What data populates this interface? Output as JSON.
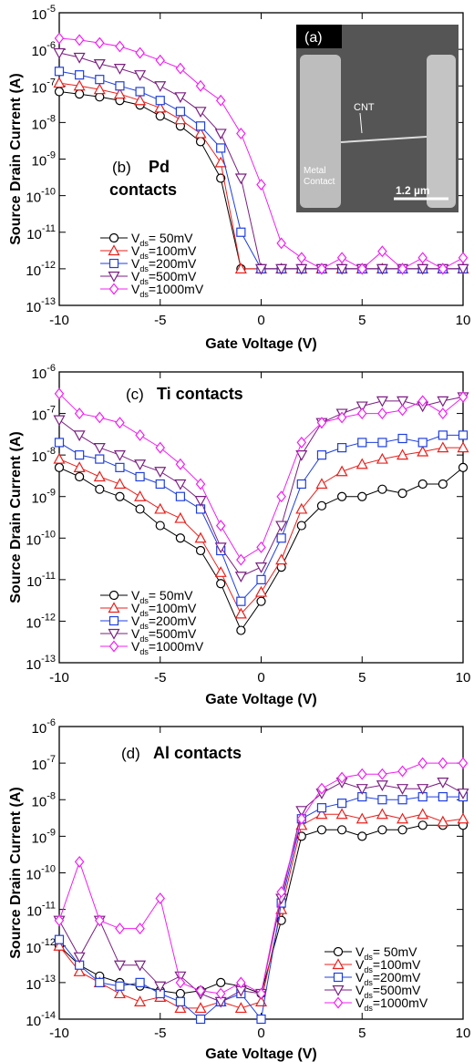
{
  "chart_data": [
    {
      "type": "line",
      "annotation": "(b)",
      "annotation_bold": [
        "Pd",
        "contacts"
      ],
      "xlabel": "Gate Voltage (V)",
      "ylabel": "Source Drain Current (A)",
      "log_y": true,
      "legend": "lower left",
      "xlim": [
        -10,
        10
      ],
      "xticks": [
        -10,
        -5,
        0,
        5,
        10
      ],
      "ylim": [
        1e-13,
        1e-05
      ],
      "yticks": [
        {
          "value": 1e-13,
          "label": "10-13"
        },
        {
          "value": 1e-12,
          "label": "10-12"
        },
        {
          "value": 1e-11,
          "label": "10-11"
        },
        {
          "value": 1e-10,
          "label": "10-10"
        },
        {
          "value": 1e-09,
          "label": "10-9"
        },
        {
          "value": 1e-08,
          "label": "10-8"
        },
        {
          "value": 1e-07,
          "label": "10-7"
        },
        {
          "value": 1e-06,
          "label": "10-6"
        },
        {
          "value": 1e-05,
          "label": "10-5"
        }
      ],
      "x": [
        -10,
        -9,
        -8,
        -7,
        -6,
        -5,
        -4,
        -3,
        -2,
        -1,
        0,
        1,
        2,
        3,
        4,
        5,
        6,
        7,
        8,
        9,
        10
      ],
      "series": [
        {
          "name": "Vds= 50mV",
          "color": "#000000",
          "marker": "circle",
          "values": [
            7e-08,
            6e-08,
            5e-08,
            4e-08,
            3e-08,
            1.5e-08,
            8e-09,
            3e-09,
            3e-10,
            1e-12,
            1e-12,
            1e-12,
            1e-12,
            1e-12,
            1e-12,
            1e-12,
            1e-12,
            1e-12,
            1e-12,
            1e-12,
            1e-12
          ]
        },
        {
          "name": "Vds=100mV",
          "color": "#e8201c",
          "marker": "triangle-up",
          "values": [
            1.2e-07,
            1e-07,
            8e-08,
            6e-08,
            4e-08,
            2.5e-08,
            1.2e-08,
            5e-09,
            8e-10,
            1e-12,
            1e-12,
            1e-12,
            1e-12,
            1e-12,
            1e-12,
            1e-12,
            1e-12,
            1e-12,
            1e-12,
            1e-12,
            1e-12
          ]
        },
        {
          "name": "Vds=200mV",
          "color": "#1f3fe0",
          "marker": "square",
          "values": [
            2.5e-07,
            2e-07,
            1.5e-07,
            1e-07,
            7e-08,
            4e-08,
            2e-08,
            8e-09,
            2e-09,
            1e-11,
            1e-12,
            1e-12,
            1e-12,
            1e-12,
            1e-12,
            1e-12,
            1e-12,
            1e-12,
            1e-12,
            1e-12,
            1e-12
          ]
        },
        {
          "name": "Vds=500mV",
          "color": "#7a1f80",
          "marker": "triangle-down",
          "values": [
            8e-07,
            6e-07,
            4e-07,
            3e-07,
            2e-07,
            1e-07,
            5e-08,
            2e-08,
            5e-09,
            3e-10,
            1e-12,
            1e-12,
            1e-12,
            1e-12,
            1e-12,
            1e-12,
            1e-12,
            1e-12,
            1e-12,
            1e-12,
            1e-12
          ]
        },
        {
          "name": "Vds=1000mV",
          "color": "#f020f0",
          "marker": "diamond",
          "values": [
            2e-06,
            1.8e-06,
            1.5e-06,
            1.2e-06,
            8e-07,
            5e-07,
            3e-07,
            1e-07,
            4e-08,
            5e-09,
            2e-10,
            5e-12,
            2e-12,
            1e-12,
            2e-12,
            1e-12,
            3e-12,
            1e-12,
            2e-12,
            1e-12,
            2e-12
          ]
        }
      ]
    },
    {
      "type": "line",
      "annotation": "(c)",
      "annotation_bold": [
        "Ti contacts"
      ],
      "xlabel": "Gate Voltage (V)",
      "ylabel": "Source Drain Current (A)",
      "log_y": true,
      "legend": "lower left",
      "xlim": [
        -10,
        10
      ],
      "xticks": [
        -10,
        -5,
        0,
        5,
        10
      ],
      "ylim": [
        1e-13,
        1e-06
      ],
      "yticks": [
        {
          "value": 1e-13,
          "label": "10-13"
        },
        {
          "value": 1e-12,
          "label": "10-12"
        },
        {
          "value": 1e-11,
          "label": "10-11"
        },
        {
          "value": 1e-10,
          "label": "10-10"
        },
        {
          "value": 1e-09,
          "label": "10-9"
        },
        {
          "value": 1e-08,
          "label": "10-8"
        },
        {
          "value": 1e-07,
          "label": "10-7"
        },
        {
          "value": 1e-06,
          "label": "10-6"
        }
      ],
      "x": [
        -10,
        -9,
        -8,
        -7,
        -6,
        -5,
        -4,
        -3,
        -2,
        -1,
        0,
        1,
        2,
        3,
        4,
        5,
        6,
        7,
        8,
        9,
        10
      ],
      "series": [
        {
          "name": "Vds= 50mV",
          "color": "#000000",
          "marker": "circle",
          "values": [
            5e-09,
            3e-09,
            1.5e-09,
            1e-09,
            5e-10,
            2e-10,
            1e-10,
            5e-11,
            8e-12,
            6e-13,
            3e-12,
            2e-11,
            2e-10,
            6e-10,
            1e-09,
            1e-09,
            1.5e-09,
            1.2e-09,
            2e-09,
            2e-09,
            5e-09
          ]
        },
        {
          "name": "Vds=100mV",
          "color": "#e8201c",
          "marker": "triangle-up",
          "values": [
            8e-09,
            5e-09,
            3e-09,
            2e-09,
            1e-09,
            5e-10,
            3e-10,
            1e-10,
            1.5e-11,
            1.5e-12,
            5e-12,
            3e-11,
            5e-10,
            2e-09,
            4e-09,
            6e-09,
            8e-09,
            1e-08,
            1.2e-08,
            1.5e-08,
            1.5e-08
          ]
        },
        {
          "name": "Vds=200mV",
          "color": "#1f3fe0",
          "marker": "square",
          "values": [
            2e-08,
            1e-08,
            8e-09,
            5e-09,
            3e-09,
            2e-09,
            1e-09,
            5e-10,
            5e-11,
            3e-12,
            1e-11,
            1e-10,
            2e-09,
            1e-08,
            1.5e-08,
            2e-08,
            2e-08,
            2.5e-08,
            2e-08,
            3e-08,
            3e-08
          ]
        },
        {
          "name": "Vds=500mV",
          "color": "#7a1f80",
          "marker": "triangle-down",
          "values": [
            7e-08,
            3e-08,
            1.5e-08,
            1e-08,
            6e-09,
            4e-09,
            2e-09,
            8e-10,
            6e-11,
            1.2e-11,
            2e-11,
            2e-10,
            1e-08,
            6e-08,
            1e-07,
            1.5e-07,
            2e-07,
            2e-07,
            1.5e-07,
            2e-07,
            2.5e-07
          ]
        },
        {
          "name": "Vds=1000mV",
          "color": "#f020f0",
          "marker": "diamond",
          "values": [
            3e-07,
            1e-07,
            8e-08,
            6e-08,
            3e-08,
            1.5e-08,
            6e-09,
            2e-09,
            2e-10,
            3e-11,
            6e-11,
            1e-09,
            2e-08,
            6e-08,
            8e-08,
            1e-07,
            1e-07,
            1.2e-07,
            2e-07,
            1e-07,
            2.5e-07
          ]
        }
      ]
    },
    {
      "type": "line",
      "annotation": "(d)",
      "annotation_bold": [
        "Al contacts"
      ],
      "xlabel": "Gate Voltage (V)",
      "ylabel": "Source Drain Current (A)",
      "log_y": true,
      "legend": "lower right",
      "xlim": [
        -10,
        10
      ],
      "xticks": [
        -10,
        -5,
        0,
        5,
        10
      ],
      "ylim": [
        1e-14,
        1e-06
      ],
      "yticks": [
        {
          "value": 1e-14,
          "label": "10-14"
        },
        {
          "value": 1e-13,
          "label": "10-13"
        },
        {
          "value": 1e-12,
          "label": "10-12"
        },
        {
          "value": 1e-11,
          "label": "10-11"
        },
        {
          "value": 1e-10,
          "label": "10-10"
        },
        {
          "value": 1e-09,
          "label": "10-9"
        },
        {
          "value": 1e-08,
          "label": "10-8"
        },
        {
          "value": 1e-07,
          "label": "10-7"
        },
        {
          "value": 1e-06,
          "label": "10-6"
        }
      ],
      "x": [
        -10,
        -9,
        -8,
        -7,
        -6,
        -5,
        -4,
        -3,
        -2,
        -1,
        0,
        1,
        2,
        3,
        4,
        5,
        6,
        7,
        8,
        9,
        10
      ],
      "series": [
        {
          "name": "Vds= 50mV",
          "color": "#000000",
          "marker": "circle",
          "values": [
            1e-12,
            3e-13,
            1.5e-13,
            1e-13,
            8e-14,
            6e-14,
            5e-14,
            6e-14,
            1e-13,
            8e-14,
            5e-14,
            5e-12,
            1e-09,
            1.5e-09,
            1.5e-09,
            1e-09,
            1.5e-09,
            1.5e-09,
            2e-09,
            2e-09,
            2e-09
          ]
        },
        {
          "name": "Vds=100mV",
          "color": "#e8201c",
          "marker": "triangle-up",
          "values": [
            1e-12,
            2e-13,
            1e-13,
            5e-14,
            3e-14,
            4e-14,
            2e-14,
            2e-14,
            3e-14,
            2e-14,
            3e-14,
            1e-11,
            2e-09,
            4e-09,
            4e-09,
            3e-09,
            4e-09,
            3e-09,
            4e-09,
            2.5e-09,
            3e-09
          ]
        },
        {
          "name": "Vds=200mV",
          "color": "#1f3fe0",
          "marker": "square",
          "values": [
            1.5e-12,
            3e-13,
            1e-13,
            8e-14,
            1e-13,
            5e-14,
            3e-14,
            1e-14,
            3e-14,
            5e-14,
            1e-14,
            1.5e-11,
            3e-09,
            6e-09,
            8e-09,
            1.2e-08,
            1e-08,
            1e-08,
            1.2e-08,
            1.2e-08,
            1.2e-08
          ]
        },
        {
          "name": "Vds=500mV",
          "color": "#7a1f80",
          "marker": "triangle-down",
          "values": [
            5e-12,
            5e-13,
            5e-12,
            3e-13,
            3e-13,
            8e-14,
            1.5e-13,
            5e-14,
            3e-14,
            6e-14,
            5e-14,
            2e-11,
            5e-09,
            1.5e-08,
            3e-08,
            2e-08,
            2.5e-08,
            2e-08,
            2e-08,
            3e-08,
            1.5e-08
          ]
        },
        {
          "name": "Vds=1000mV",
          "color": "#f020f0",
          "marker": "diamond",
          "values": [
            5e-12,
            2e-10,
            5e-12,
            3e-12,
            3e-12,
            2e-11,
            1e-13,
            6e-14,
            5e-14,
            1e-13,
            5e-14,
            3e-11,
            3e-09,
            2e-08,
            4e-08,
            5e-08,
            5e-08,
            6e-08,
            1e-07,
            1e-07,
            1e-07
          ]
        }
      ]
    }
  ],
  "inset": {
    "label": "(a)",
    "cnt_label": "CNT",
    "contact_label": [
      "Metal",
      "Contact"
    ],
    "scale_bar": "1.2 µm"
  }
}
